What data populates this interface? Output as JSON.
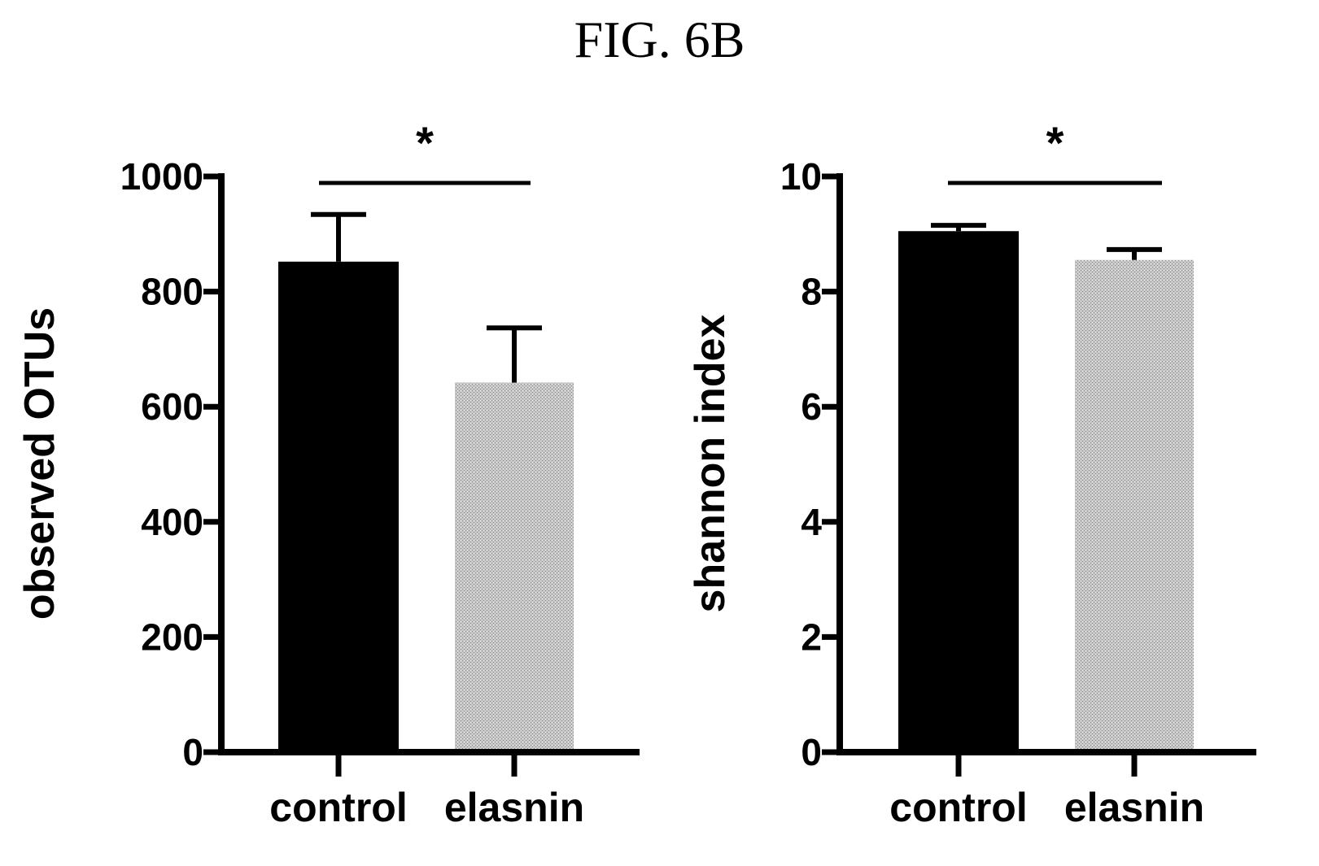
{
  "figure_title": "FIG. 6B",
  "colors": {
    "control": "#000000",
    "elasnin": "#bdbdbd",
    "axis": "#000000"
  },
  "chart_data": [
    {
      "type": "bar",
      "categories": [
        "control",
        "elasnin"
      ],
      "values": [
        852,
        642
      ],
      "errors": [
        82,
        95
      ],
      "ylabel": "observed OTUs",
      "ylim": [
        0,
        1000
      ],
      "yticks": [
        "0",
        "200",
        "400",
        "600",
        "800",
        "1000"
      ],
      "ytick_values": [
        0,
        200,
        400,
        600,
        800,
        1000
      ],
      "significance": {
        "label": "*",
        "between": [
          "control",
          "elasnin"
        ]
      },
      "grid": false
    },
    {
      "type": "bar",
      "categories": [
        "control",
        "elasnin"
      ],
      "values": [
        9.05,
        8.55
      ],
      "errors": [
        0.1,
        0.18
      ],
      "ylabel": "shannon index",
      "ylim": [
        0,
        10
      ],
      "yticks": [
        "0",
        "2",
        "4",
        "6",
        "8",
        "10"
      ],
      "ytick_values": [
        0,
        2,
        4,
        6,
        8,
        10
      ],
      "significance": {
        "label": "*",
        "between": [
          "control",
          "elasnin"
        ]
      },
      "grid": false
    }
  ]
}
